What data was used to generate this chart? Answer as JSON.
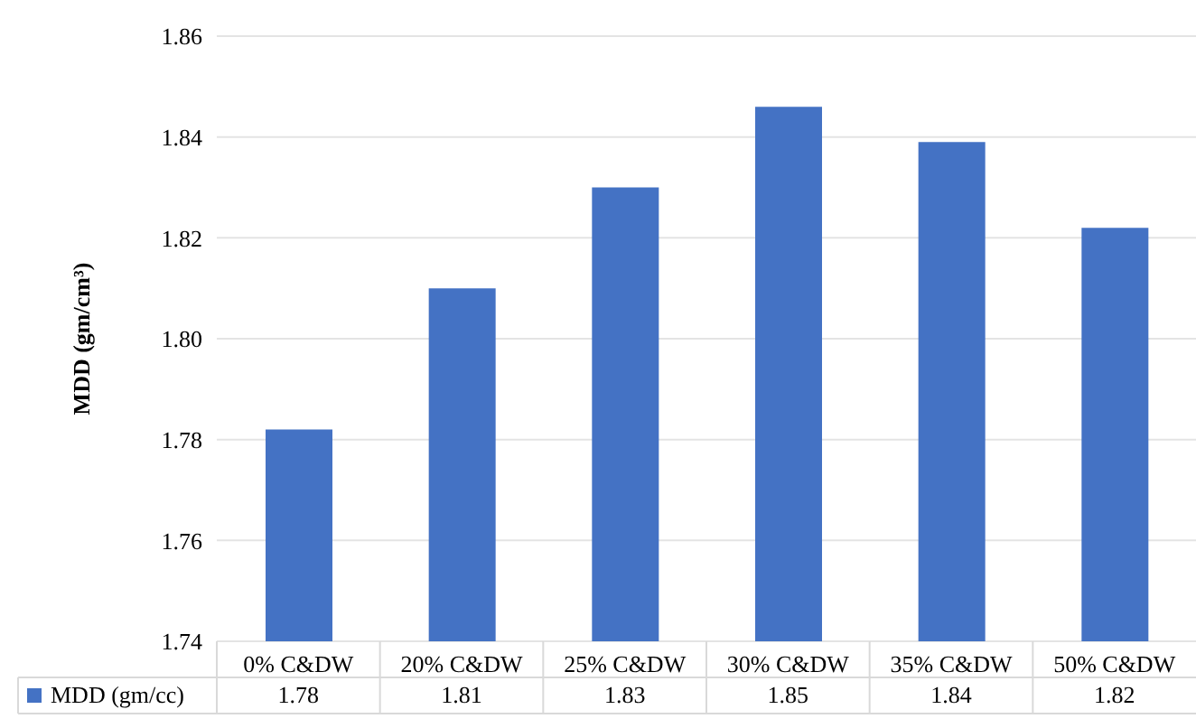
{
  "chart_data": {
    "type": "bar",
    "ylabel": "MDD (gm/cm³)",
    "categories": [
      "0% C&DW",
      "20% C&DW",
      "25% C&DW",
      "30% C&DW",
      "35% C&DW",
      "50% C&DW"
    ],
    "series": [
      {
        "name": "MDD (gm/cc)",
        "color": "#4472c4",
        "values": [
          1.782,
          1.81,
          1.83,
          1.846,
          1.839,
          1.822
        ],
        "value_labels": [
          "1.78",
          "1.81",
          "1.83",
          "1.85",
          "1.84",
          "1.82"
        ]
      }
    ],
    "ylim": [
      1.74,
      1.86
    ],
    "yticks": [
      1.74,
      1.76,
      1.78,
      {
        "value": 1.8,
        "label": "1.80"
      },
      1.82,
      1.84,
      1.86
    ],
    "grid": "y",
    "legend": "bottom left"
  }
}
